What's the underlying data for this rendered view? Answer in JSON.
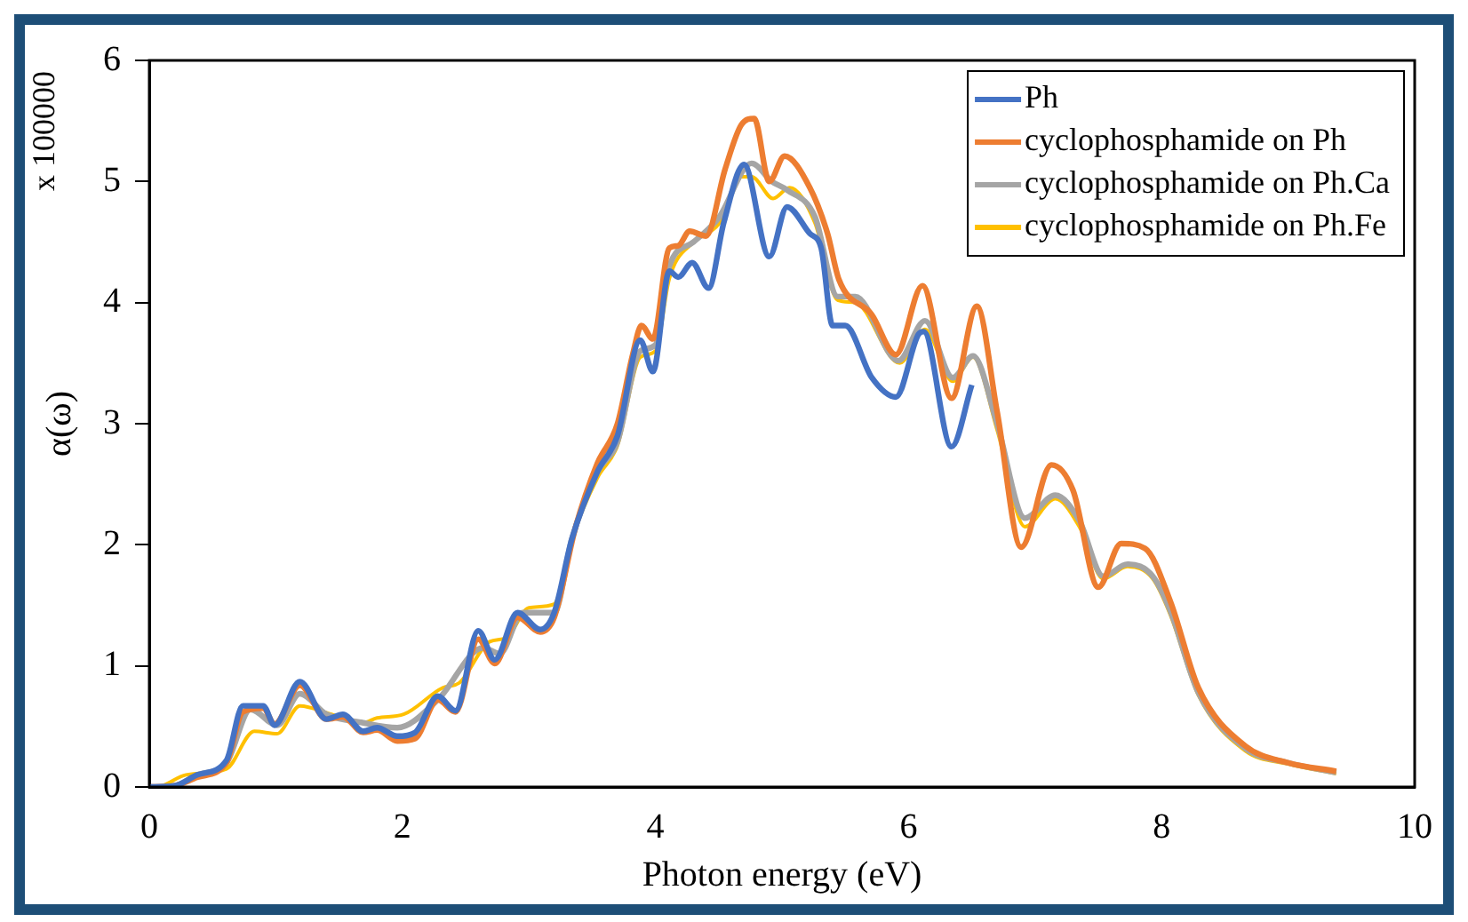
{
  "chart_data": {
    "type": "line",
    "xlabel": "Photon energy (eV)",
    "ylabel": "α(ω)",
    "annotations": [
      "x 100000"
    ],
    "xlim": [
      0,
      10
    ],
    "xticks": [
      0,
      2,
      4,
      6,
      8,
      10
    ],
    "ylim": [
      0,
      6
    ],
    "yticks": [
      0,
      1,
      2,
      3,
      4,
      5,
      6
    ],
    "grid": false,
    "legend": "top right",
    "marker": "none",
    "line_style": "solid",
    "series": [
      {
        "name": "Ph",
        "color": "#4472c4",
        "x": [
          0,
          0.2,
          0.38,
          0.61,
          0.74,
          0.9,
          0.99,
          1.19,
          1.4,
          1.53,
          1.69,
          1.8,
          1.96,
          2.1,
          2.28,
          2.42,
          2.6,
          2.73,
          2.91,
          3.09,
          3.2,
          3.34,
          3.54,
          3.7,
          3.88,
          3.98,
          4.11,
          4.18,
          4.29,
          4.42,
          4.54,
          4.7,
          4.9,
          5.04,
          5.22,
          5.31,
          5.4,
          5.5,
          5.71,
          5.9,
          6.08,
          6.12,
          6.34,
          6.5
        ],
        "values": [
          0,
          0.01,
          0.1,
          0.22,
          0.67,
          0.67,
          0.51,
          0.87,
          0.56,
          0.6,
          0.46,
          0.49,
          0.42,
          0.45,
          0.75,
          0.63,
          1.29,
          1.05,
          1.44,
          1.3,
          1.44,
          2.05,
          2.6,
          2.9,
          3.69,
          3.43,
          4.26,
          4.21,
          4.33,
          4.12,
          4.66,
          5.14,
          4.38,
          4.79,
          4.57,
          4.45,
          3.81,
          3.81,
          3.38,
          3.22,
          3.74,
          3.76,
          2.81,
          3.32
        ]
      },
      {
        "name": "cyclophosphamide on Ph",
        "color": "#ed7d31",
        "x": [
          0,
          0.2,
          0.38,
          0.61,
          0.74,
          0.9,
          0.99,
          1.19,
          1.4,
          1.53,
          1.69,
          1.8,
          1.96,
          2.1,
          2.28,
          2.42,
          2.6,
          2.73,
          2.91,
          3.09,
          3.2,
          3.37,
          3.54,
          3.7,
          3.82,
          3.89,
          3.98,
          4.11,
          4.18,
          4.27,
          4.4,
          4.55,
          4.68,
          4.78,
          4.9,
          5.02,
          5.22,
          5.36,
          5.45,
          5.71,
          5.9,
          6.11,
          6.34,
          6.54,
          6.7,
          6.89,
          7.13,
          7.3,
          7.5,
          7.68,
          7.87,
          8.07,
          8.29,
          8.66,
          9.0,
          9.38
        ],
        "values": [
          0,
          0.01,
          0.08,
          0.2,
          0.62,
          0.65,
          0.52,
          0.84,
          0.56,
          0.58,
          0.45,
          0.47,
          0.38,
          0.4,
          0.72,
          0.62,
          1.22,
          1.02,
          1.4,
          1.28,
          1.4,
          2.15,
          2.67,
          3.0,
          3.57,
          3.81,
          3.7,
          4.45,
          4.47,
          4.59,
          4.55,
          5.1,
          5.47,
          5.52,
          5.0,
          5.21,
          4.95,
          4.57,
          4.19,
          3.9,
          3.57,
          4.14,
          3.21,
          3.97,
          3.1,
          1.98,
          2.66,
          2.45,
          1.65,
          2.01,
          1.97,
          1.53,
          0.82,
          0.34,
          0.2,
          0.13
        ]
      },
      {
        "name": "cyclophosphamide on Ph.Ca",
        "color": "#a5a5a5",
        "x": [
          0,
          0.2,
          0.38,
          0.61,
          0.8,
          1.01,
          1.19,
          1.4,
          1.69,
          1.96,
          2.28,
          2.64,
          2.77,
          2.95,
          3.2,
          3.34,
          3.54,
          3.7,
          3.88,
          4.0,
          4.11,
          4.3,
          4.5,
          4.76,
          4.92,
          5.04,
          5.26,
          5.44,
          5.58,
          5.92,
          6.13,
          6.35,
          6.51,
          6.7,
          6.92,
          7.16,
          7.35,
          7.54,
          7.73,
          7.93,
          8.07,
          8.29,
          8.66,
          9.0,
          9.38
        ],
        "values": [
          0,
          0.01,
          0.1,
          0.2,
          0.64,
          0.51,
          0.77,
          0.6,
          0.53,
          0.49,
          0.72,
          1.15,
          1.1,
          1.44,
          1.44,
          2.05,
          2.6,
          2.85,
          3.6,
          3.65,
          4.3,
          4.5,
          4.7,
          5.15,
          5.0,
          4.93,
          4.71,
          4.05,
          4.05,
          3.52,
          3.85,
          3.38,
          3.56,
          3.0,
          2.22,
          2.41,
          2.2,
          1.74,
          1.84,
          1.74,
          1.45,
          0.78,
          0.32,
          0.2,
          0.12
        ]
      },
      {
        "name": "cyclophosphamide on Ph.Fe",
        "color": "#ffc000",
        "x": [
          0,
          0.1,
          0.29,
          0.61,
          0.83,
          1.01,
          1.19,
          1.44,
          1.69,
          1.8,
          2.01,
          2.32,
          2.45,
          2.69,
          2.82,
          3.0,
          3.2,
          3.34,
          3.54,
          3.7,
          3.88,
          4.0,
          4.11,
          4.3,
          4.5,
          4.68,
          4.76,
          4.93,
          5.06,
          5.26,
          5.44,
          5.58,
          5.93,
          6.13,
          6.35,
          6.51,
          6.7,
          6.92,
          7.16,
          7.35,
          7.54,
          7.73,
          7.93,
          8.07,
          8.29,
          8.66,
          9.0,
          9.38
        ],
        "values": [
          0,
          0.01,
          0.1,
          0.15,
          0.46,
          0.44,
          0.67,
          0.6,
          0.53,
          0.57,
          0.6,
          0.82,
          0.86,
          1.2,
          1.23,
          1.48,
          1.51,
          2.05,
          2.55,
          2.82,
          3.55,
          3.6,
          4.2,
          4.5,
          4.65,
          5.04,
          5.04,
          4.86,
          4.95,
          4.66,
          4.02,
          4.0,
          3.5,
          3.78,
          3.35,
          3.55,
          2.95,
          2.15,
          2.38,
          2.15,
          1.72,
          1.82,
          1.72,
          1.42,
          0.76,
          0.3,
          0.19,
          0.11
        ]
      }
    ]
  }
}
